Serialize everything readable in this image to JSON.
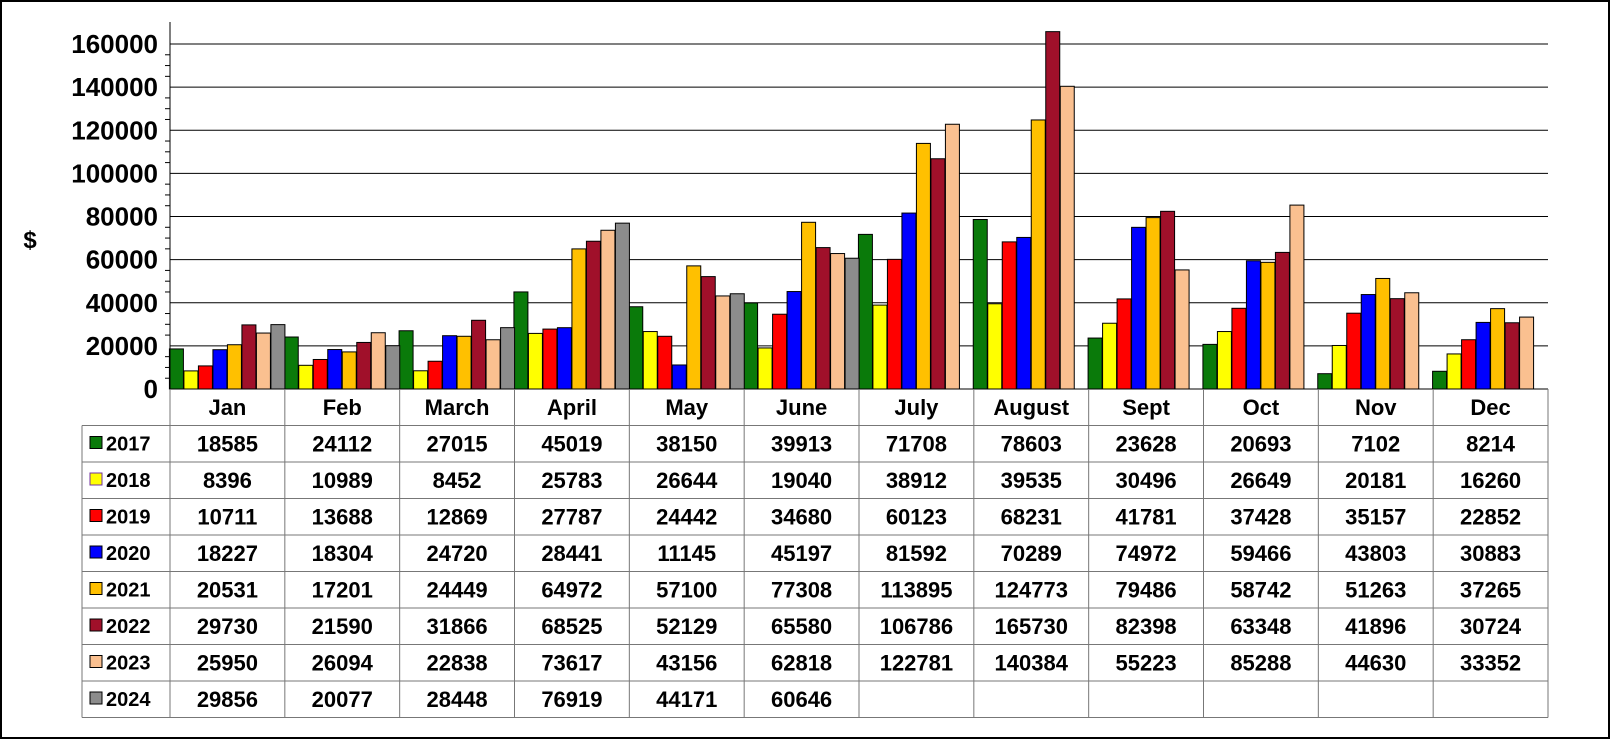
{
  "chart_data": {
    "type": "bar",
    "title": "",
    "xlabel": "",
    "ylabel": "$",
    "ylim": [
      0,
      160000
    ],
    "yticks": [
      0,
      20000,
      40000,
      60000,
      80000,
      100000,
      120000,
      140000,
      160000
    ],
    "grid": true,
    "legend": "table-rows",
    "categories": [
      "Jan",
      "Feb",
      "March",
      "April",
      "May",
      "June",
      "July",
      "August",
      "Sept",
      "Oct",
      "Nov",
      "Dec"
    ],
    "series": [
      {
        "name": "2017",
        "color": "#0a7a0a",
        "values": [
          18585,
          24112,
          27015,
          45019,
          38150,
          39913,
          71708,
          78603,
          23628,
          20693,
          7102,
          8214
        ]
      },
      {
        "name": "2018",
        "color": "#ffff00",
        "values": [
          8396,
          10989,
          8452,
          25783,
          26644,
          19040,
          38912,
          39535,
          30496,
          26649,
          20181,
          16260
        ]
      },
      {
        "name": "2019",
        "color": "#ff0000",
        "values": [
          10711,
          13688,
          12869,
          27787,
          24442,
          34680,
          60123,
          68231,
          41781,
          37428,
          35157,
          22852
        ]
      },
      {
        "name": "2020",
        "color": "#0000ff",
        "values": [
          18227,
          18304,
          24720,
          28441,
          11145,
          45197,
          81592,
          70289,
          74972,
          59466,
          43803,
          30883
        ]
      },
      {
        "name": "2021",
        "color": "#ffc000",
        "values": [
          20531,
          17201,
          24449,
          64972,
          57100,
          77308,
          113895,
          124773,
          79486,
          58742,
          51263,
          37265
        ]
      },
      {
        "name": "2022",
        "color": "#a0102a",
        "values": [
          29730,
          21590,
          31866,
          68525,
          52129,
          65580,
          106786,
          165730,
          82398,
          63348,
          41896,
          30724
        ]
      },
      {
        "name": "2023",
        "color": "#fac090",
        "values": [
          25950,
          26094,
          22838,
          73617,
          43156,
          62818,
          122781,
          140384,
          55223,
          85288,
          44630,
          33352
        ]
      },
      {
        "name": "2024",
        "color": "#8c8c8c",
        "values": [
          29856,
          20077,
          28448,
          76919,
          44171,
          60646,
          null,
          null,
          null,
          null,
          null,
          null
        ]
      }
    ]
  }
}
